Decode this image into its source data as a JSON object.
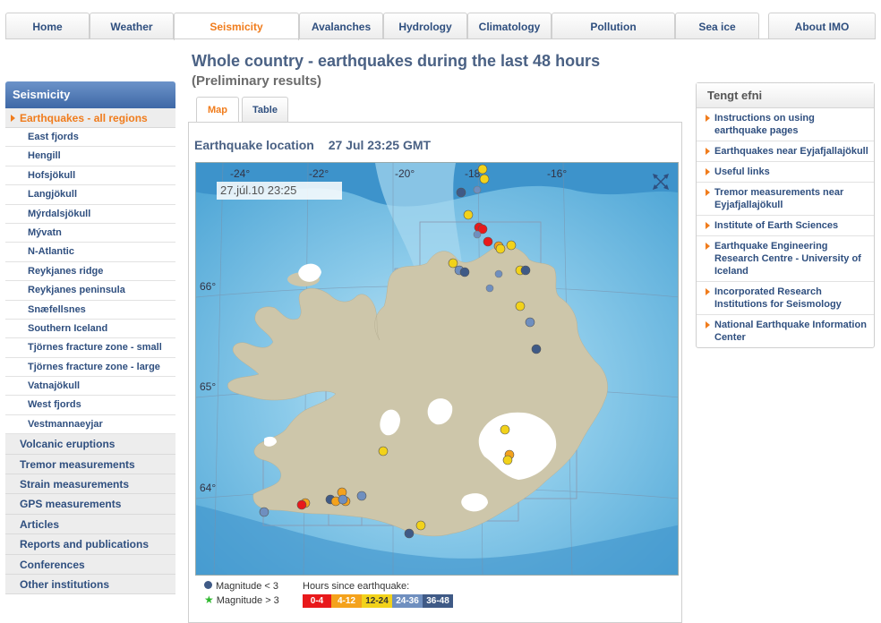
{
  "topnav": [
    {
      "label": "Home"
    },
    {
      "label": "Weather"
    },
    {
      "label": "Seismicity"
    },
    {
      "label": "Avalanches"
    },
    {
      "label": "Hydrology"
    },
    {
      "label": "Climatology"
    },
    {
      "label": "Pollution"
    },
    {
      "label": "Sea ice"
    },
    {
      "label": "About IMO"
    }
  ],
  "sidebar": {
    "heading": "Seismicity",
    "active": "Earthquakes - all regions",
    "subitems": [
      "East fjords",
      "Hengill",
      "Hofsjökull",
      "Langjökull",
      "Mýrdalsjökull",
      "Mývatn",
      "N-Atlantic",
      "Reykjanes ridge",
      "Reykjanes peninsula",
      "Snæfellsnes",
      "Southern Iceland",
      "Tjörnes fracture zone - small",
      "Tjörnes fracture zone - large",
      "Vatnajökull",
      "West fjords",
      "Vestmannaeyjar"
    ],
    "items": [
      "Volcanic eruptions",
      "Tremor measurements",
      "Strain measurements",
      "GPS measurements",
      "Articles",
      "Reports and publications",
      "Conferences",
      "Other institutions"
    ]
  },
  "main": {
    "title": "Whole country - earthquakes during the last 48 hours",
    "subtitle": "(Preliminary results)",
    "tabs": [
      {
        "label": "Map"
      },
      {
        "label": "Table"
      }
    ],
    "map_heading": "Earthquake location",
    "map_time": "27 Jul 23:25 GMT",
    "map_stamp": "27.júl.10  23:25",
    "lon_labels": [
      "-24°",
      "-22°",
      "-20°",
      "-18°",
      "-16°"
    ],
    "lat_labels": [
      "66°",
      "65°",
      "64°"
    ]
  },
  "legend": {
    "mag_small": "Magnitude < 3",
    "mag_large": "Magnitude > 3",
    "hours_title": "Hours since earthquake:",
    "hours": [
      {
        "label": "0-4",
        "color": "#e8191b"
      },
      {
        "label": "4-12",
        "color": "#f4a21c"
      },
      {
        "label": "12-24",
        "color": "#f2d21a"
      },
      {
        "label": "24-36",
        "color": "#6f8fbf"
      },
      {
        "label": "36-48",
        "color": "#3f5a86"
      }
    ]
  },
  "right": {
    "heading": "Tengt efni",
    "links": [
      "Instructions on using earthquake pages",
      "Earthquakes near Eyjafjallajökull",
      "Useful links",
      "Tremor measurements near Eyjafjallajökull",
      "Institute of Earth Sciences",
      "Earthquake Engineering Research Centre - University of Iceland",
      "Incorporated Research Institutions for Seismology",
      "National Earthquake Information Center"
    ]
  },
  "colors": {
    "accent": "#f07c1c",
    "nav_text": "#2f4f7f",
    "land": "#cfc8ac",
    "glacier": "#ffffff",
    "sea": "#5fb5de"
  }
}
